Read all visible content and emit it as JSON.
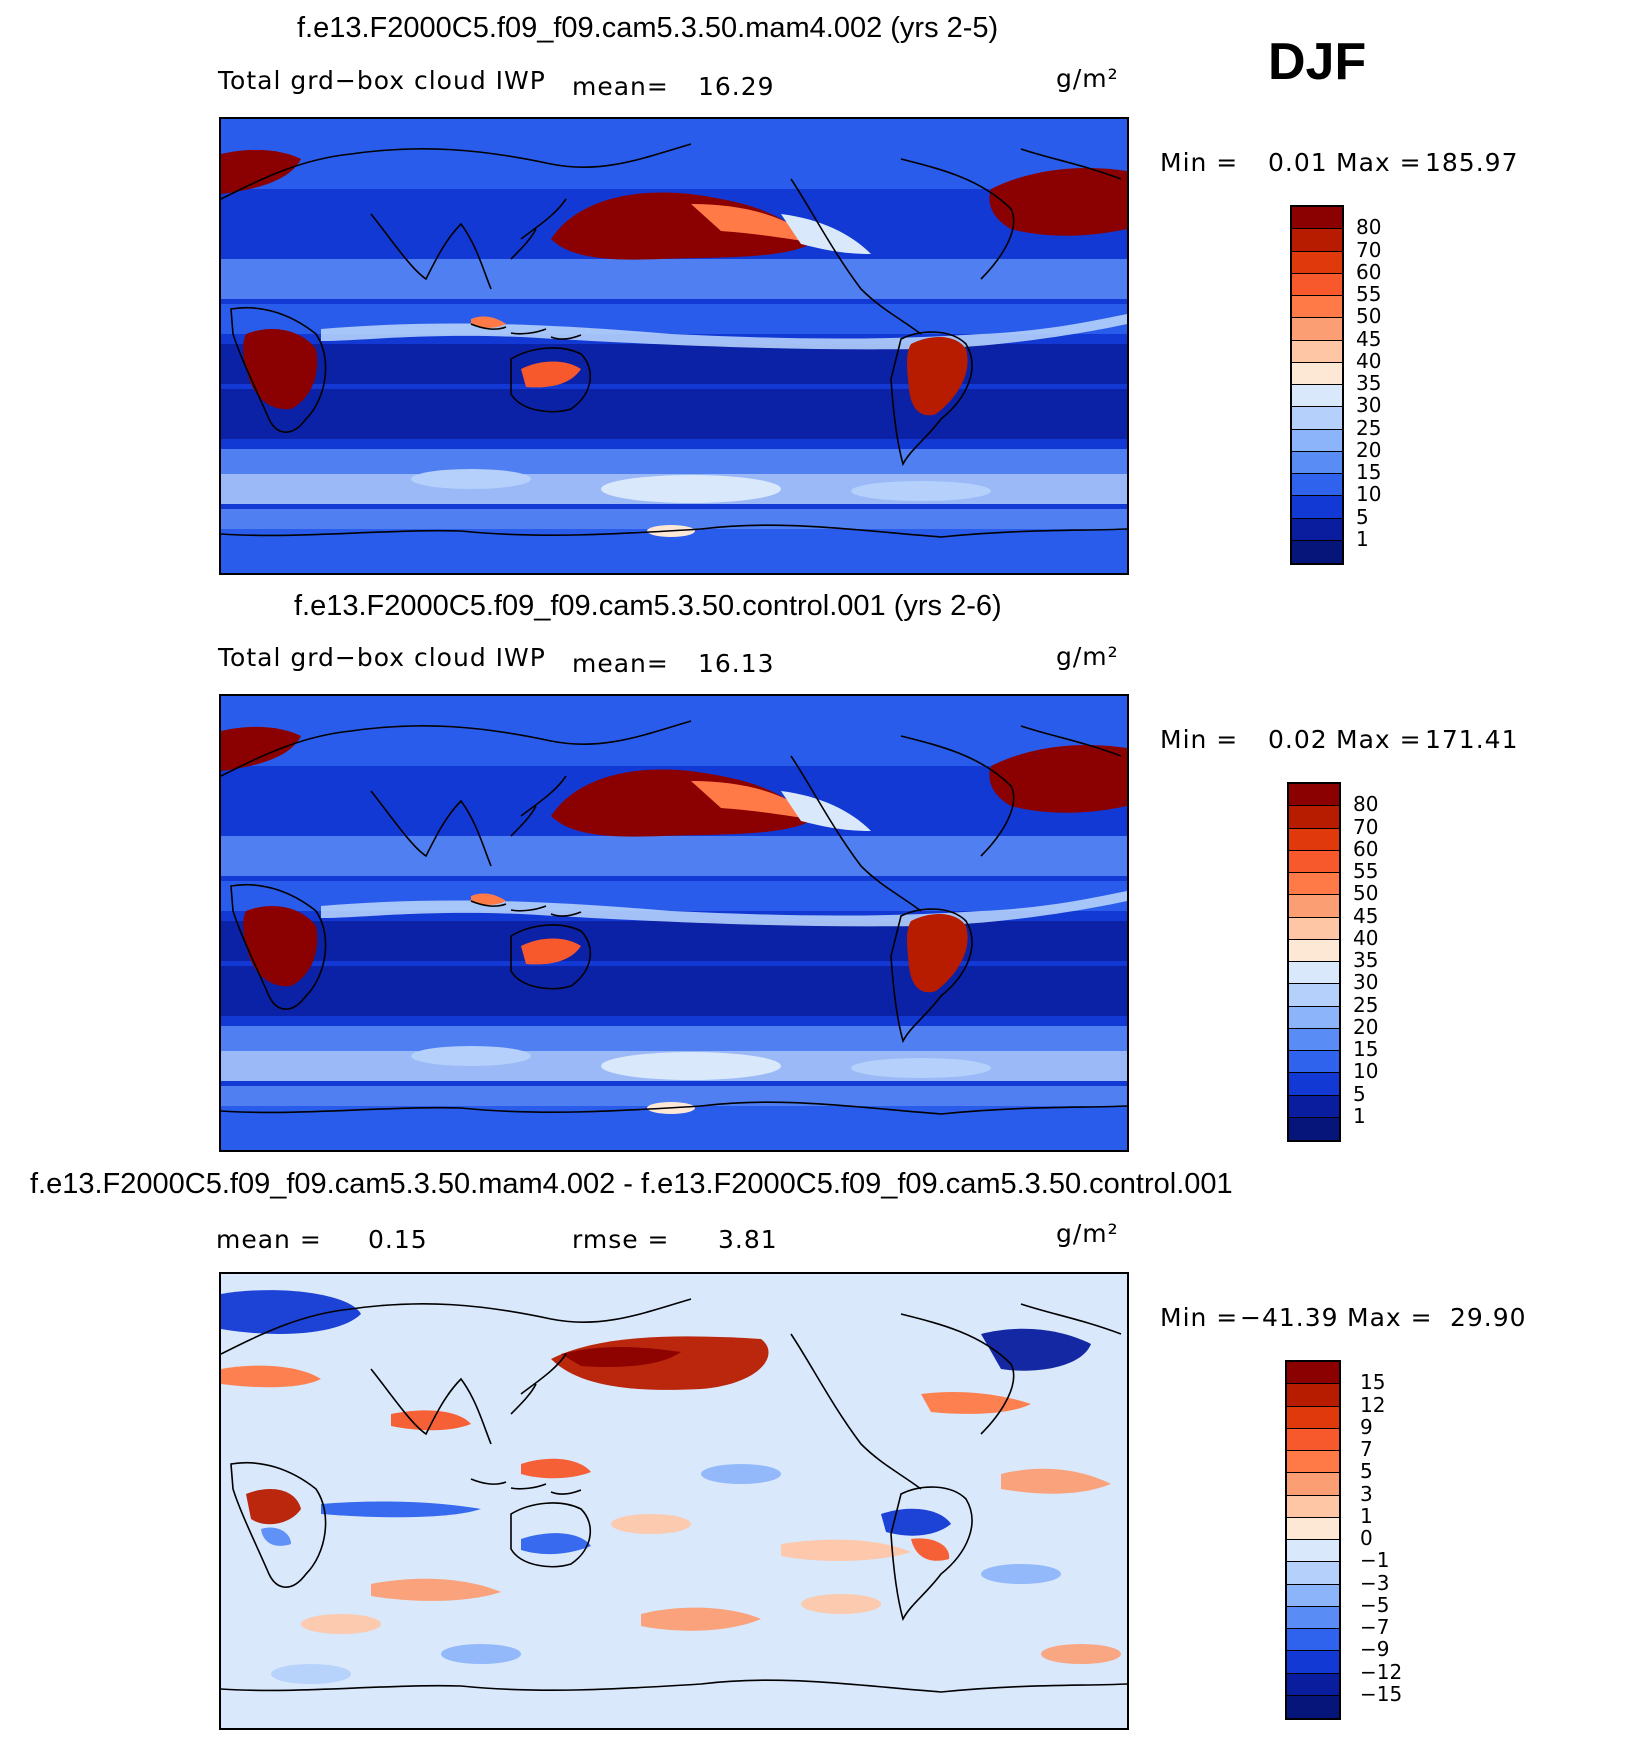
{
  "season": "DJF",
  "chart_data": [
    {
      "type": "heatmap",
      "title": "f.e13.F2000C5.f09_f09.cam5.3.50.mam4.002 (yrs 2-5)",
      "variable": "Total grd−box cloud IWP",
      "mean_label": "mean=",
      "mean_value": "16.29",
      "units": "g/m²",
      "min_label": "Min =",
      "min_value": "0.01",
      "max_label": "Max =",
      "max_value": "185.97",
      "levels": [
        "80",
        "70",
        "60",
        "55",
        "50",
        "45",
        "40",
        "35",
        "30",
        "25",
        "20",
        "15",
        "10",
        "5",
        "1"
      ],
      "colors": [
        "#8b0000",
        "#b81c00",
        "#e03a0c",
        "#f8592c",
        "#ff7a47",
        "#fc9e74",
        "#ffc6a6",
        "#fde8d6",
        "#d9e8fb",
        "#b4d0fb",
        "#8bb4fb",
        "#5a8cf6",
        "#2f63ee",
        "#1239d4",
        "#0a1d9e",
        "#05157a"
      ]
    },
    {
      "type": "heatmap",
      "title": "f.e13.F2000C5.f09_f09.cam5.3.50.control.001 (yrs 2-6)",
      "variable": "Total grd−box cloud IWP",
      "mean_label": "mean=",
      "mean_value": "16.13",
      "units": "g/m²",
      "min_label": "Min =",
      "min_value": "0.02",
      "max_label": "Max =",
      "max_value": "171.41",
      "levels": [
        "80",
        "70",
        "60",
        "55",
        "50",
        "45",
        "40",
        "35",
        "30",
        "25",
        "20",
        "15",
        "10",
        "5",
        "1"
      ],
      "colors": [
        "#8b0000",
        "#b81c00",
        "#e03a0c",
        "#f8592c",
        "#ff7a47",
        "#fc9e74",
        "#ffc6a6",
        "#fde8d6",
        "#d9e8fb",
        "#b4d0fb",
        "#8bb4fb",
        "#5a8cf6",
        "#2f63ee",
        "#1239d4",
        "#0a1d9e",
        "#05157a"
      ]
    },
    {
      "type": "heatmap",
      "title": "f.e13.F2000C5.f09_f09.cam5.3.50.mam4.002 - f.e13.F2000C5.f09_f09.cam5.3.50.control.001",
      "mean_label": "mean =",
      "mean_value": "0.15",
      "rmse_label": "rmse =",
      "rmse_value": "3.81",
      "units": "g/m²",
      "min_label": "Min =",
      "min_value": "−41.39",
      "max_label": "Max =",
      "max_value": "29.90",
      "levels": [
        "15",
        "12",
        "9",
        "7",
        "5",
        "3",
        "1",
        "0",
        "−1",
        "−3",
        "−5",
        "−7",
        "−9",
        "−12",
        "−15"
      ],
      "colors": [
        "#8b0000",
        "#b81c00",
        "#e03a0c",
        "#f8592c",
        "#ff7a47",
        "#fc9e74",
        "#ffc6a6",
        "#fde8d6",
        "#d9e8fb",
        "#b4d0fb",
        "#8bb4fb",
        "#5a8cf6",
        "#2f63ee",
        "#1239d4",
        "#0a1d9e",
        "#05157a"
      ]
    }
  ]
}
